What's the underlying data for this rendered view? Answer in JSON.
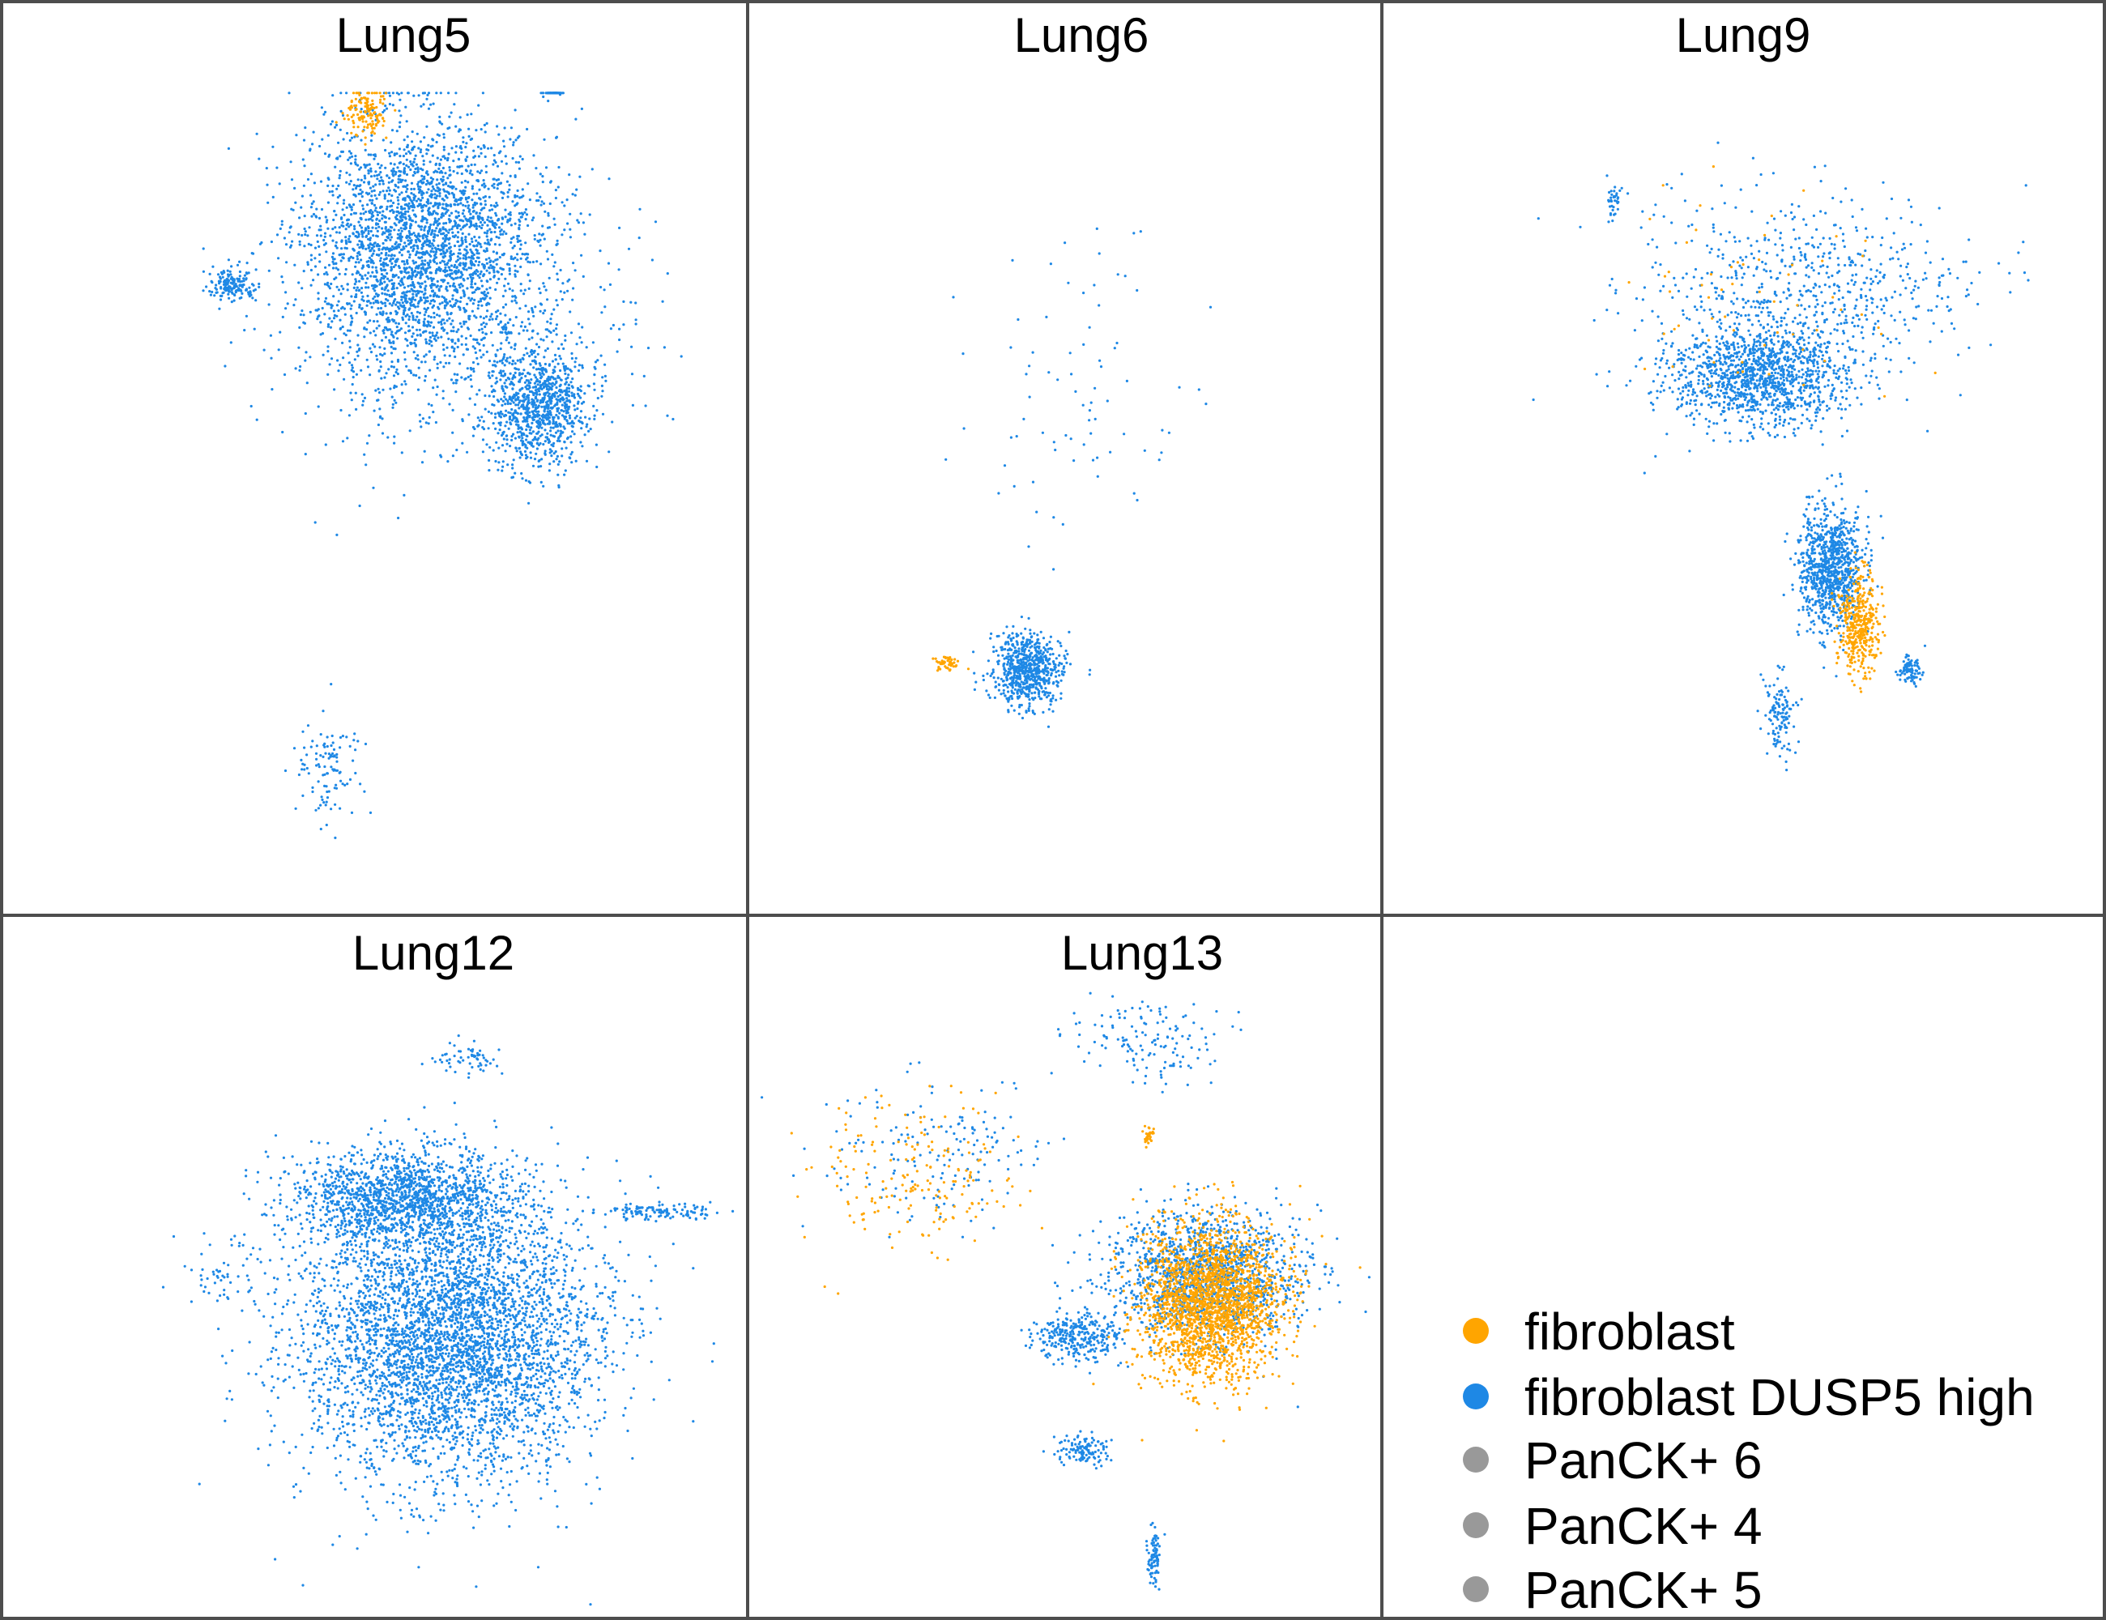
{
  "colors": {
    "fibroblast": "#FFA500",
    "fibroblast DUSP5 high": "#1E88E5",
    "PanCK+ 6": "#999999",
    "PanCK+ 4": "#999999",
    "PanCK+ 5": "#999999",
    "panel_border": "#4d4d4d"
  },
  "chart_data": {
    "type": "scatter",
    "description_of_encoding": "Faceted UMAP-style embedding, one panel per sample; each point is a cell colored by cell type. Clusters listed with approximate centres in normalized panel coordinates (0-1, origin top-left) and relative cell counts.",
    "facets": [
      {
        "title": "Lung5",
        "clusters": [
          {
            "type": "fibroblast DUSP5 high",
            "cx": 0.56,
            "cy": 0.26,
            "sx": 0.14,
            "sy": 0.12,
            "n": 2600
          },
          {
            "type": "fibroblast DUSP5 high",
            "cx": 0.72,
            "cy": 0.44,
            "sx": 0.06,
            "sy": 0.06,
            "n": 900
          },
          {
            "type": "fibroblast DUSP5 high",
            "cx": 0.6,
            "cy": 0.35,
            "sx": 0.22,
            "sy": 0.14,
            "n": 700
          },
          {
            "type": "fibroblast DUSP5 high",
            "cx": 0.31,
            "cy": 0.31,
            "sx": 0.03,
            "sy": 0.015,
            "n": 160
          },
          {
            "type": "fibroblast DUSP5 high",
            "cx": 0.74,
            "cy": 0.09,
            "sx": 0.012,
            "sy": 0.012,
            "n": 60
          },
          {
            "type": "fibroblast DUSP5 high",
            "cx": 0.44,
            "cy": 0.84,
            "sx": 0.04,
            "sy": 0.05,
            "n": 110
          },
          {
            "type": "fibroblast",
            "cx": 0.49,
            "cy": 0.12,
            "sx": 0.025,
            "sy": 0.025,
            "n": 140
          }
        ]
      },
      {
        "title": "Lung6",
        "clusters": [
          {
            "type": "fibroblast DUSP5 high",
            "cx": 0.44,
            "cy": 0.73,
            "sx": 0.05,
            "sy": 0.035,
            "n": 700
          },
          {
            "type": "fibroblast DUSP5 high",
            "cx": 0.52,
            "cy": 0.45,
            "sx": 0.14,
            "sy": 0.18,
            "n": 80
          },
          {
            "type": "fibroblast",
            "cx": 0.31,
            "cy": 0.725,
            "sx": 0.02,
            "sy": 0.008,
            "n": 50
          }
        ]
      },
      {
        "title": "Lung9",
        "clusters": [
          {
            "type": "fibroblast DUSP5 high",
            "cx": 0.52,
            "cy": 0.41,
            "sx": 0.11,
            "sy": 0.05,
            "n": 1200
          },
          {
            "type": "fibroblast DUSP5 high",
            "cx": 0.58,
            "cy": 0.32,
            "sx": 0.2,
            "sy": 0.1,
            "n": 700
          },
          {
            "type": "fibroblast DUSP5 high",
            "cx": 0.62,
            "cy": 0.62,
            "sx": 0.04,
            "sy": 0.06,
            "n": 900
          },
          {
            "type": "fibroblast DUSP5 high",
            "cx": 0.55,
            "cy": 0.78,
            "sx": 0.02,
            "sy": 0.04,
            "n": 120
          },
          {
            "type": "fibroblast DUSP5 high",
            "cx": 0.73,
            "cy": 0.73,
            "sx": 0.015,
            "sy": 0.015,
            "n": 90
          },
          {
            "type": "fibroblast DUSP5 high",
            "cx": 0.32,
            "cy": 0.22,
            "sx": 0.008,
            "sy": 0.02,
            "n": 40
          },
          {
            "type": "fibroblast",
            "cx": 0.66,
            "cy": 0.68,
            "sx": 0.025,
            "sy": 0.05,
            "n": 400
          },
          {
            "type": "fibroblast",
            "cx": 0.52,
            "cy": 0.33,
            "sx": 0.18,
            "sy": 0.1,
            "n": 60
          }
        ]
      },
      {
        "title": "Lung12",
        "clusters": [
          {
            "type": "fibroblast DUSP5 high",
            "cx": 0.6,
            "cy": 0.6,
            "sx": 0.18,
            "sy": 0.18,
            "n": 4500
          },
          {
            "type": "fibroblast DUSP5 high",
            "cx": 0.54,
            "cy": 0.4,
            "sx": 0.14,
            "sy": 0.06,
            "n": 1500
          },
          {
            "type": "fibroblast DUSP5 high",
            "cx": 0.63,
            "cy": 0.2,
            "sx": 0.04,
            "sy": 0.02,
            "n": 60
          },
          {
            "type": "fibroblast DUSP5 high",
            "cx": 0.88,
            "cy": 0.42,
            "sx": 0.07,
            "sy": 0.01,
            "n": 120
          },
          {
            "type": "fibroblast DUSP5 high",
            "cx": 0.3,
            "cy": 0.51,
            "sx": 0.06,
            "sy": 0.05,
            "n": 60
          }
        ]
      },
      {
        "title": "Lung13",
        "clusters": [
          {
            "type": "fibroblast",
            "cx": 0.73,
            "cy": 0.55,
            "sx": 0.1,
            "sy": 0.1,
            "n": 2200
          },
          {
            "type": "fibroblast DUSP5 high",
            "cx": 0.72,
            "cy": 0.51,
            "sx": 0.14,
            "sy": 0.08,
            "n": 1400
          },
          {
            "type": "fibroblast DUSP5 high",
            "cx": 0.52,
            "cy": 0.6,
            "sx": 0.06,
            "sy": 0.03,
            "n": 300
          },
          {
            "type": "fibroblast DUSP5 high",
            "cx": 0.53,
            "cy": 0.76,
            "sx": 0.04,
            "sy": 0.02,
            "n": 120
          },
          {
            "type": "fibroblast DUSP5 high",
            "cx": 0.64,
            "cy": 0.91,
            "sx": 0.01,
            "sy": 0.04,
            "n": 80
          },
          {
            "type": "fibroblast DUSP5 high",
            "cx": 0.62,
            "cy": 0.17,
            "sx": 0.1,
            "sy": 0.06,
            "n": 140
          },
          {
            "type": "fibroblast",
            "cx": 0.25,
            "cy": 0.37,
            "sx": 0.16,
            "sy": 0.1,
            "n": 180
          },
          {
            "type": "fibroblast DUSP5 high",
            "cx": 0.3,
            "cy": 0.34,
            "sx": 0.16,
            "sy": 0.1,
            "n": 160
          },
          {
            "type": "fibroblast",
            "cx": 0.63,
            "cy": 0.31,
            "sx": 0.008,
            "sy": 0.012,
            "n": 30
          }
        ]
      }
    ],
    "legend": {
      "position": "bottom-right",
      "entries": [
        {
          "label": "fibroblast"
        },
        {
          "label": "fibroblast DUSP5 high"
        },
        {
          "label": "PanCK+ 6"
        },
        {
          "label": "PanCK+ 4"
        },
        {
          "label": "PanCK+ 5"
        }
      ]
    },
    "xlabel": "",
    "ylabel": "",
    "grid": false
  }
}
